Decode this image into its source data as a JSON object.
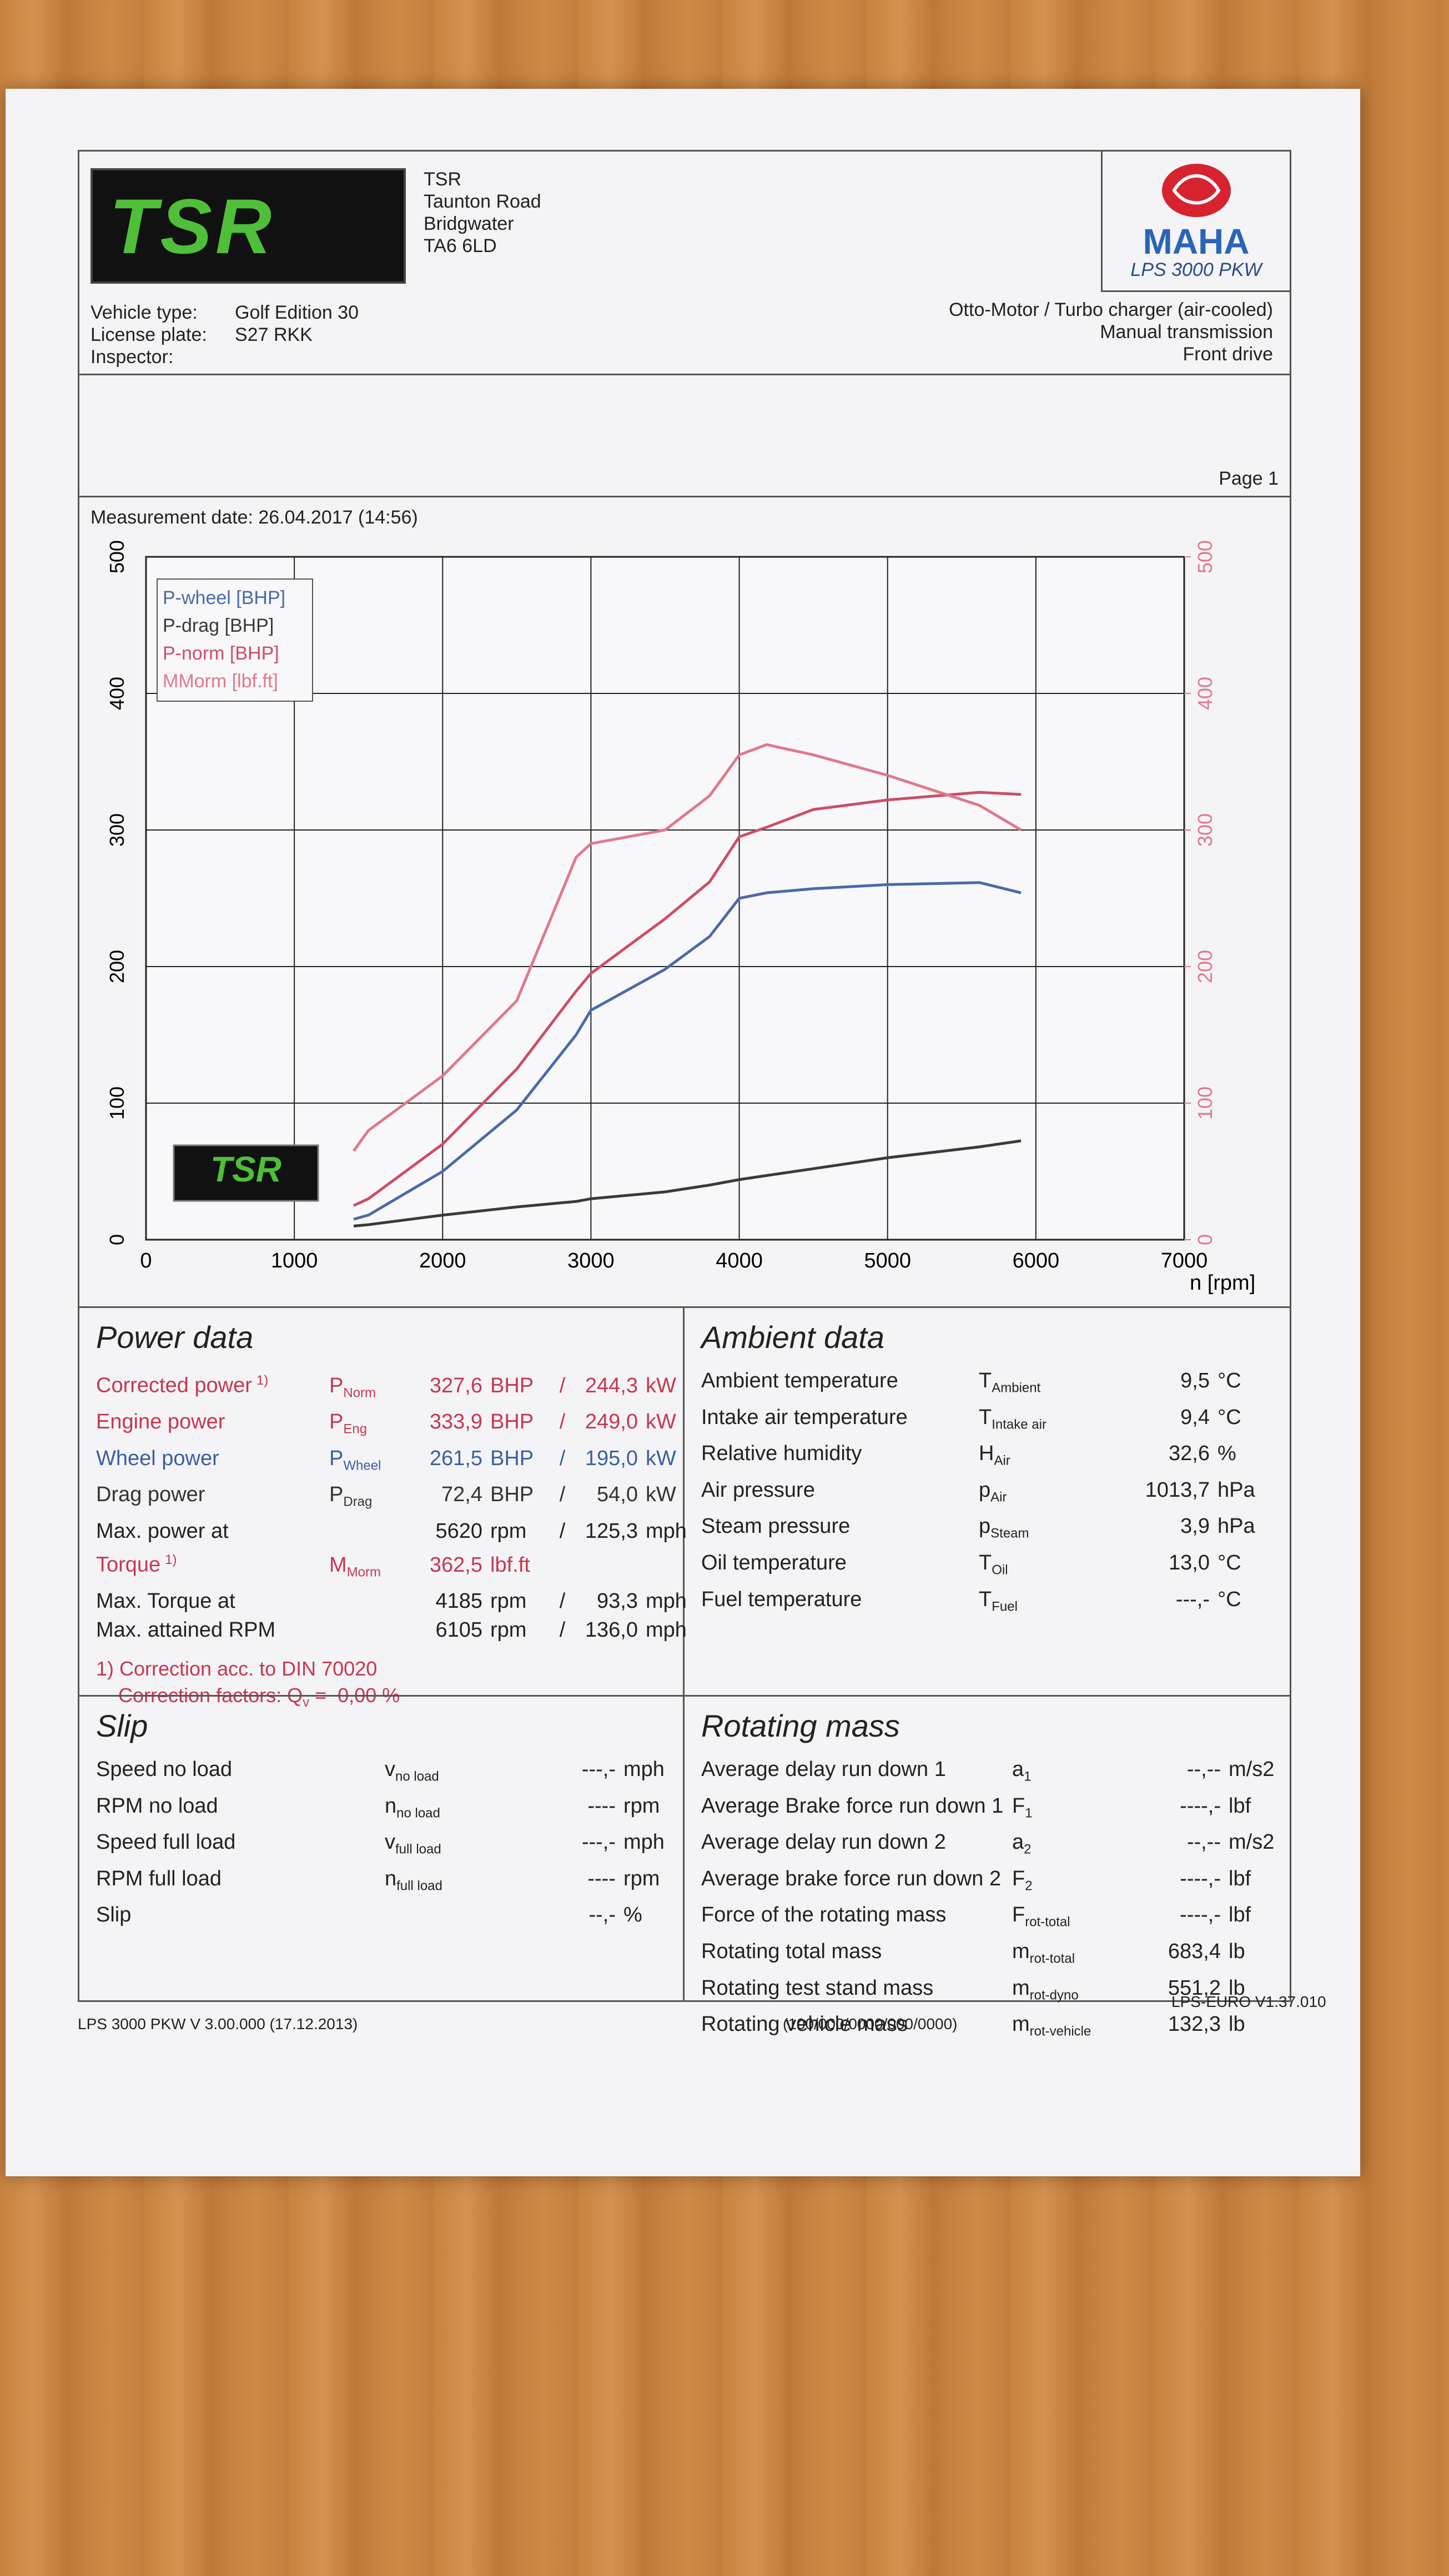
{
  "header": {
    "logo_text": "TSR",
    "company": [
      "TSR",
      "Taunton Road",
      "Bridgwater",
      "TA6 6LD"
    ],
    "brand": "MAHA",
    "model": "LPS 3000 PKW",
    "engine_info": [
      "Otto-Motor / Turbo charger (air-cooled)",
      "Manual transmission",
      "Front drive"
    ],
    "vehicle": [
      {
        "label": "Vehicle type:",
        "value": "Golf Edition 30"
      },
      {
        "label": "License plate:",
        "value": "S27 RKK"
      },
      {
        "label": "Inspector:"
      }
    ],
    "page": "Page 1",
    "measurement": "Measurement date: 26.04.2017 (14:56)"
  },
  "chart_data": {
    "type": "line",
    "x_label": "n [rpm]",
    "x": [
      1400,
      1500,
      2000,
      2500,
      2900,
      3000,
      3500,
      3800,
      4000,
      4185,
      4500,
      5000,
      5620,
      5900
    ],
    "series": [
      {
        "name": "P-wheel [BHP]",
        "color": "#4a6aa8",
        "values": [
          15,
          18,
          50,
          95,
          150,
          168,
          198,
          222,
          250,
          254,
          257,
          260,
          261.5,
          254
        ]
      },
      {
        "name": "P-drag [BHP]",
        "color": "#3a3a3a",
        "values": [
          10,
          11,
          18,
          24,
          28,
          30,
          35,
          40,
          44,
          47,
          52,
          60,
          68,
          72.4
        ]
      },
      {
        "name": "P-norm [BHP]",
        "color": "#cf4d66",
        "values": [
          25,
          30,
          70,
          125,
          182,
          195,
          235,
          262,
          295,
          302,
          315,
          322,
          327.6,
          326
        ]
      },
      {
        "name": "MMorm [lbf.ft]",
        "color": "#e0798a",
        "axis": "y2",
        "values": [
          65,
          80,
          120,
          175,
          280,
          290,
          300,
          325,
          355,
          362.5,
          355,
          340,
          318,
          300
        ]
      }
    ],
    "xlim": [
      0,
      7000
    ],
    "xticks": [
      0,
      1000,
      2000,
      3000,
      4000,
      5000,
      6000,
      7000
    ],
    "ylim": [
      0,
      500
    ],
    "yticks": [
      0,
      100,
      200,
      300,
      400,
      500
    ],
    "y2lim": [
      0,
      500
    ],
    "y2ticks": [
      0,
      100,
      200,
      300,
      400,
      500
    ],
    "y2_tick_color": "#e0798a",
    "grid": true,
    "legend": "top-left"
  },
  "power_data": {
    "title": "Power data",
    "rows": [
      {
        "label": "Corrected power",
        "note": "1)",
        "sym": "P",
        "sub": "Norm",
        "v1": "327,6",
        "u1": "BHP",
        "sep": "/",
        "v2": "244,3",
        "u2": "kW",
        "color": "#c8374f"
      },
      {
        "label": "Engine power",
        "sym": "P",
        "sub": "Eng",
        "v1": "333,9",
        "u1": "BHP",
        "sep": "/",
        "v2": "249,0",
        "u2": "kW",
        "color": "#c8374f"
      },
      {
        "label": "Wheel power",
        "sym": "P",
        "sub": "Wheel",
        "v1": "261,5",
        "u1": "BHP",
        "sep": "/",
        "v2": "195,0",
        "u2": "kW",
        "color": "#3b5fa0"
      },
      {
        "label": "Drag power",
        "sym": "P",
        "sub": "Drag",
        "v1": "72,4",
        "u1": "BHP",
        "sep": "/",
        "v2": "54,0",
        "u2": "kW",
        "color": "#333333"
      },
      {
        "label": "Max. power at",
        "v1": "5620",
        "u1": "rpm",
        "sep": "/",
        "v2": "125,3",
        "u2": "mph",
        "color": "#222222"
      },
      {
        "label": "Torque",
        "note": "1)",
        "sym": "M",
        "sub": "Morm",
        "v1": "362,5",
        "u1": "lbf.ft",
        "color": "#c8374f"
      },
      {
        "label": "Max. Torque at",
        "v1": "4185",
        "u1": "rpm",
        "sep": "/",
        "v2": "93,3",
        "u2": "mph",
        "color": "#222222"
      },
      {
        "label": "Max. attained RPM",
        "v1": "6105",
        "u1": "rpm",
        "sep": "/",
        "v2": "136,0",
        "u2": "mph",
        "color": "#222222"
      }
    ],
    "notes": [
      "1) Correction acc. to DIN 70020",
      "Correction factors:"
    ],
    "factor_sym": "Q",
    "factor_sub": "v",
    "factor_value": "=  0,00 %"
  },
  "ambient_data": {
    "title": "Ambient data",
    "rows": [
      {
        "label": "Ambient temperature",
        "sym": "T",
        "sub": "Ambient",
        "v1": "9,5",
        "u1": "°C"
      },
      {
        "label": "Intake air temperature",
        "sym": "T",
        "sub": "Intake air",
        "v1": "9,4",
        "u1": "°C"
      },
      {
        "label": "Relative humidity",
        "sym": "H",
        "sub": "Air",
        "v1": "32,6",
        "u1": "%"
      },
      {
        "label": "Air pressure",
        "sym": "p",
        "sub": "Air",
        "v1": "1013,7",
        "u1": "hPa"
      },
      {
        "label": "Steam pressure",
        "sym": "p",
        "sub": "Steam",
        "v1": "3,9",
        "u1": "hPa"
      },
      {
        "label": "Oil temperature",
        "sym": "T",
        "sub": "Oil",
        "v1": "13,0",
        "u1": "°C"
      },
      {
        "label": "Fuel temperature",
        "sym": "T",
        "sub": "Fuel",
        "v1": "---,-",
        "u1": "°C"
      }
    ]
  },
  "slip": {
    "title": "Slip",
    "rows": [
      {
        "label": "Speed no load",
        "sym": "v",
        "sub": "no load",
        "v1": "---,-",
        "u1": "mph"
      },
      {
        "label": "RPM no load",
        "sym": "n",
        "sub": "no load",
        "v1": "----",
        "u1": "rpm"
      },
      {
        "label": "Speed full load",
        "sym": "v",
        "sub": "full load",
        "v1": "---,-",
        "u1": "mph"
      },
      {
        "label": "RPM full load",
        "sym": "n",
        "sub": "full load",
        "v1": "----",
        "u1": "rpm"
      },
      {
        "label": "Slip",
        "v1": "--,-",
        "u1": "%"
      }
    ]
  },
  "rotating_mass": {
    "title": "Rotating mass",
    "rows": [
      {
        "label": "Average delay run down 1",
        "sym": "a",
        "sub": "1",
        "v1": "--,--",
        "u1": "m/s2"
      },
      {
        "label": "Average Brake force run down 1",
        "sym": "F",
        "sub": "1",
        "v1": "----,-",
        "u1": "lbf"
      },
      {
        "label": "Average delay run down 2",
        "sym": "a",
        "sub": "2",
        "v1": "--,--",
        "u1": "m/s2"
      },
      {
        "label": "Average brake force run down 2",
        "sym": "F",
        "sub": "2",
        "v1": "----,-",
        "u1": "lbf"
      },
      {
        "label": "Force of the rotating mass",
        "sym": "F",
        "sub": "rot-total",
        "v1": "----,-",
        "u1": "lbf"
      },
      {
        "label": "Rotating total mass",
        "sym": "m",
        "sub": "rot-total",
        "v1": "683,4",
        "u1": "lb"
      },
      {
        "label": "Rotating test stand mass",
        "sym": "m",
        "sub": "rot-dyno",
        "v1": "551,2",
        "u1": "lb"
      },
      {
        "label": "Rotating vehicle mass",
        "sym": "m",
        "sub": "rot-vehicle",
        "v1": "132,3",
        "u1": "lb"
      }
    ]
  },
  "footer": [
    "LPS 3000 PKW V 3.00.000 (17.12.2013)",
    "(100/000/0000/000/0000)",
    "LPS-EURO V1.37.010"
  ]
}
